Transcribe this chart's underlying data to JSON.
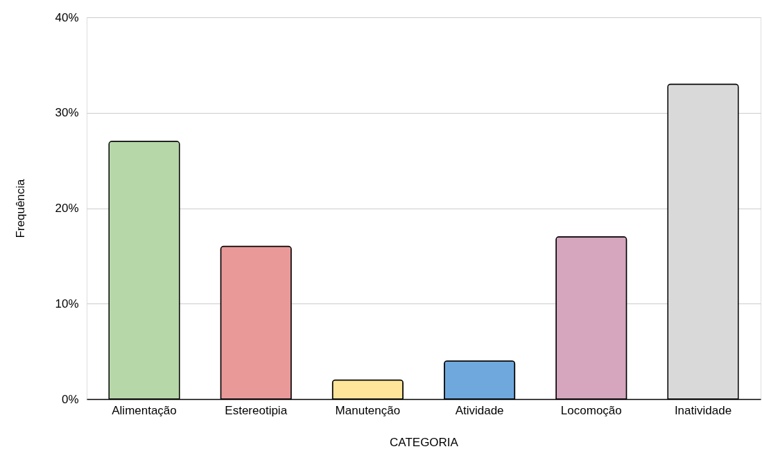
{
  "chart_data": {
    "type": "bar",
    "xlabel": "CATEGORIA",
    "ylabel": "Frequência",
    "categories": [
      "Alimentação",
      "Estereotipia",
      "Manutenção",
      "Atividade",
      "Locomoção",
      "Inatividade"
    ],
    "values": [
      27,
      16,
      2,
      4,
      17,
      33
    ],
    "colors": [
      "#b6d7a8",
      "#ea9999",
      "#ffe599",
      "#6fa8dc",
      "#d5a6bd",
      "#d9d9d9"
    ],
    "ylim": [
      0,
      40
    ],
    "yticks": [
      {
        "value": 0,
        "label": "0%"
      },
      {
        "value": 10,
        "label": "10%"
      },
      {
        "value": 20,
        "label": "20%"
      },
      {
        "value": 30,
        "label": "30%"
      },
      {
        "value": 40,
        "label": "40%"
      }
    ],
    "grid": "y"
  }
}
